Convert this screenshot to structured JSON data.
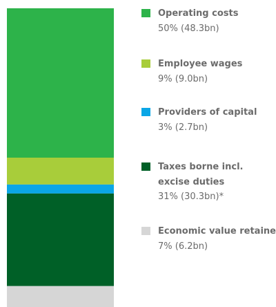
{
  "chart_data": {
    "type": "bar",
    "stacked": true,
    "orientation": "vertical",
    "categories": [
      "Operating costs",
      "Employee wages",
      "Providers of capital",
      "Taxes borne incl. excise duties",
      "Economic value retained"
    ],
    "values": [
      50,
      9,
      3,
      31,
      7
    ],
    "unit": "%",
    "colors": [
      "#2db34a",
      "#a8cd3a",
      "#0aa6e6",
      "#006027",
      "#d6d6d6"
    ],
    "legend_position": "right"
  },
  "legend": [
    {
      "label_lines": [
        "Operating costs"
      ],
      "value": "50% (48.3bn)",
      "color": "#2db34a"
    },
    {
      "label_lines": [
        "Employee wages"
      ],
      "value": "9% (9.0bn)",
      "color": "#a8cd3a"
    },
    {
      "label_lines": [
        "Providers of capital"
      ],
      "value": "3% (2.7bn)",
      "color": "#0aa6e6"
    },
    {
      "label_lines": [
        "Taxes borne incl.",
        "excise duties"
      ],
      "value": "31% (30.3bn)*",
      "color": "#006027"
    },
    {
      "label_lines": [
        "Economic value retained"
      ],
      "value": "7% (6.2bn)",
      "color": "#d6d6d6"
    }
  ]
}
